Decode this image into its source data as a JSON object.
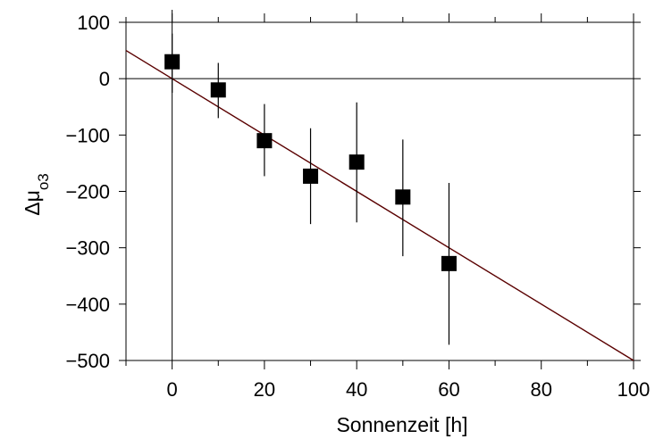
{
  "chart_data": {
    "type": "scatter",
    "xlabel": "Sonnenzeit [h]",
    "ylabel": {
      "base": "Δμ",
      "subscript": "o3"
    },
    "xlim": [
      -10,
      100
    ],
    "ylim": [
      -500,
      100
    ],
    "x_ticks": [
      0,
      20,
      40,
      60,
      80,
      100
    ],
    "x_tick_labels": [
      "0",
      "20",
      "40",
      "60",
      "80",
      "100"
    ],
    "x_minor_step": 10,
    "y_ticks": [
      100,
      0,
      -100,
      -200,
      -300,
      -400,
      -500
    ],
    "y_tick_labels": [
      "100",
      "0",
      "−100",
      "−200",
      "−300",
      "−400",
      "−500"
    ],
    "grid": false,
    "reference_lines": {
      "horizontal_y": 0,
      "vertical_x": 0
    },
    "points": [
      {
        "x": 0,
        "y": 30,
        "err_low": -25,
        "err_high": 80
      },
      {
        "x": 10,
        "y": -20,
        "err_low": -70,
        "err_high": 28
      },
      {
        "x": 20,
        "y": -110,
        "err_low": -173,
        "err_high": -45
      },
      {
        "x": 30,
        "y": -173,
        "err_low": -258,
        "err_high": -88
      },
      {
        "x": 40,
        "y": -148,
        "err_low": -255,
        "err_high": -42
      },
      {
        "x": 50,
        "y": -210,
        "err_low": -315,
        "err_high": -108
      },
      {
        "x": 60,
        "y": -328,
        "err_low": -472,
        "err_high": -185
      }
    ],
    "fit_line": {
      "x": [
        -10,
        100
      ],
      "y": [
        50,
        -500
      ],
      "color": "#5a0000"
    },
    "marker_color": "#000000"
  }
}
